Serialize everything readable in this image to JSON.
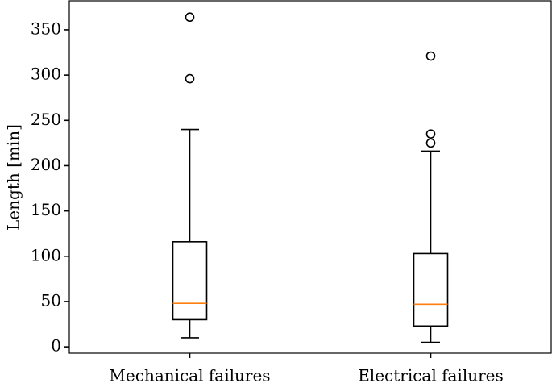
{
  "chart_data": {
    "type": "box",
    "y_label": "Length [min]",
    "categories": [
      "Mechanical failures",
      "Electrical failures"
    ],
    "boxes": [
      {
        "whislo": 10,
        "q1": 30,
        "med": 48,
        "q3": 116,
        "whishi": 240,
        "fliers": [
          296,
          364
        ]
      },
      {
        "whislo": 5,
        "q1": 23,
        "med": 47,
        "q3": 103,
        "whishi": 216,
        "fliers": [
          225,
          235,
          321
        ]
      }
    ],
    "box_color": "#000000",
    "median_color": "#ff7f0e",
    "ylim": [
      -7,
      382
    ],
    "yticks": [
      0,
      50,
      100,
      150,
      200,
      250,
      300,
      350
    ]
  }
}
